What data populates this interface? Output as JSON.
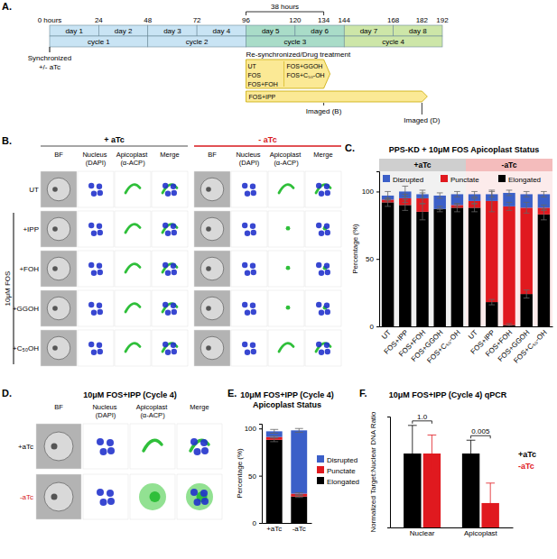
{
  "panels": {
    "A": "A.",
    "B": "B.",
    "C": "C.",
    "D": "D.",
    "E": "E.",
    "F": "F."
  },
  "timeline": {
    "hour_ticks": [
      {
        "value": 0,
        "label": "0 hours"
      },
      24,
      48,
      72,
      96,
      120,
      134,
      144,
      168,
      182,
      192
    ],
    "span": {
      "from": 96,
      "to": 134,
      "label": "38 hours"
    },
    "days": [
      {
        "label": "day 1",
        "from": 0,
        "to": 24,
        "color": "#c9e4f4"
      },
      {
        "label": "day 2",
        "from": 24,
        "to": 48,
        "color": "#c9e4f4"
      },
      {
        "label": "day 3",
        "from": 48,
        "to": 72,
        "color": "#c9e4f4"
      },
      {
        "label": "day 4",
        "from": 72,
        "to": 96,
        "color": "#c9e4f4"
      },
      {
        "label": "day 5",
        "from": 96,
        "to": 120,
        "color": "#a9dcc8"
      },
      {
        "label": "day 6",
        "from": 120,
        "to": 144,
        "color": "#a9dcc8"
      },
      {
        "label": "day 7",
        "from": 144,
        "to": 168,
        "color": "#cde6a8"
      },
      {
        "label": "day 8",
        "from": 168,
        "to": 192,
        "color": "#cde6a8"
      }
    ],
    "cycles": [
      {
        "label": "cycle 1",
        "from": 0,
        "to": 48,
        "color": "#c9e4f4"
      },
      {
        "label": "cycle 2",
        "from": 48,
        "to": 96,
        "color": "#c9e4f4"
      },
      {
        "label": "cycle 3",
        "from": 96,
        "to": 144,
        "color": "#a9dcc8"
      },
      {
        "label": "cycle 4",
        "from": 144,
        "to": 192,
        "color": "#cde6a8"
      }
    ],
    "start_note": [
      "Synchronized",
      "+/- aTc"
    ],
    "treatment_title": "Re-synchronized/Drug treatment",
    "short_treatment": {
      "from": 96,
      "to": 134,
      "color": "#fbe995",
      "columns": [
        [
          "UT",
          "FOS",
          "FOS+FOH"
        ],
        [
          "FOS+GGOH",
          "FOS+C₅₀-OH"
        ]
      ]
    },
    "long_treatment": {
      "from": 96,
      "to": 182,
      "color": "#fbe995",
      "label": "FOS+IPP"
    },
    "imaged": [
      {
        "at": 134,
        "label": "Imaged (B)"
      },
      {
        "at": 182,
        "label": "Imaged (D)"
      }
    ]
  },
  "micrographs_B": {
    "conditions": [
      {
        "label": "+ aTc",
        "color": "#000000"
      },
      {
        "label": "- aTc",
        "color": "#d7191c"
      }
    ],
    "channels": [
      "BF",
      "Nucleus (DAPI)",
      "Apicoplast (α-ACP)",
      "Merge"
    ],
    "drug": "10μM FOS",
    "rows": [
      "UT",
      "+IPP",
      "+FOH",
      "+GGOH",
      "+C₅₀OH"
    ]
  },
  "micrographs_D": {
    "title": "10μM FOS+IPP (Cycle 4)",
    "channels": [
      "BF",
      "Nucleus (DAPI)",
      "Apicoplast (α-ACP)",
      "Merge"
    ],
    "rows": [
      {
        "label": "+aTc",
        "color": "#000000"
      },
      {
        "label": "-aTc",
        "color": "#d7191c"
      }
    ]
  },
  "chart_data": [
    {
      "type": "bar",
      "stacked": true,
      "title": "PPS-KD + 10μM FOS Apicoplast Status",
      "y_label": "Percentage (%)",
      "categories": [
        "UT",
        "FOS+IPP",
        "FOS+FOH",
        "FOS+GGOH",
        "FOS+C₅₀-OH",
        "UT",
        "FOS+IPP",
        "FOS+FOH",
        "FOS+GGOH",
        "FOS+C₅₀-OH"
      ],
      "groups": [
        {
          "label": "+aTc",
          "count": 5,
          "color": "#cfcfcf"
        },
        {
          "label": "-aTc",
          "count": 5,
          "color": "#f4bcbc"
        }
      ],
      "series": [
        {
          "name": "Elongated",
          "color": "#000000",
          "values": [
            92,
            90,
            85,
            87,
            88,
            88,
            18,
            1,
            24,
            83
          ],
          "errors": [
            3,
            4,
            6,
            2,
            3,
            3,
            2,
            1,
            3,
            4
          ]
        },
        {
          "name": "Punctate",
          "color": "#e0191f",
          "values": [
            2,
            5,
            10,
            0,
            2,
            5,
            75,
            88,
            64,
            5
          ],
          "errors": [
            1,
            3,
            4,
            0,
            1,
            2,
            8,
            3,
            4,
            2
          ]
        },
        {
          "name": "Disrupted",
          "color": "#3b5fc8",
          "values": [
            3,
            5,
            3,
            10,
            8,
            5,
            5,
            10,
            10,
            10
          ],
          "errors": [
            3,
            4,
            3,
            2,
            2,
            2,
            2,
            2,
            2,
            2
          ]
        }
      ],
      "ylim": [
        0,
        115
      ],
      "yticks": [
        0,
        50,
        100
      ],
      "grid": false,
      "legend": "top"
    },
    {
      "type": "bar",
      "stacked": true,
      "title": [
        "10μM FOS+IPP (Cycle 4)",
        "Apicoplast Status"
      ],
      "y_label": "Percentage (%)",
      "categories": [
        "+aTc",
        "-aTc"
      ],
      "series": [
        {
          "name": "Elongated",
          "color": "#000000",
          "values": [
            88,
            28
          ],
          "errors": [
            2,
            1
          ]
        },
        {
          "name": "Punctate",
          "color": "#e0191f",
          "values": [
            3,
            3
          ],
          "errors": [
            1,
            1
          ]
        },
        {
          "name": "Disrupted",
          "color": "#3b5fc8",
          "values": [
            6,
            67
          ],
          "errors": [
            2,
            2
          ]
        }
      ],
      "ylim": [
        0,
        105
      ],
      "yticks": [
        0,
        50,
        100
      ],
      "grid": false,
      "legend": "right"
    },
    {
      "type": "bar",
      "title": "10μM FOS+IPP (Cycle 4) qPCR",
      "y_label": "Normalized Target:Nuclear DNA Ratio",
      "categories": [
        "Nuclear",
        "Apicoplast"
      ],
      "series": [
        {
          "name": "+aTc",
          "color": "#000000",
          "values": [
            1,
            1
          ],
          "errors": [
            0.38,
            0.18
          ]
        },
        {
          "name": "-aTc",
          "color": "#e0191f",
          "values": [
            1,
            0.33
          ],
          "errors": [
            0.25,
            0.27
          ]
        }
      ],
      "annotations": [
        {
          "category": "Nuclear",
          "label": "1.0"
        },
        {
          "category": "Apicoplast",
          "label": "0.005"
        }
      ],
      "ylim": [
        0,
        1.5
      ],
      "yticks": [],
      "tick_labels": "x",
      "grid": false,
      "legend": "right"
    }
  ]
}
